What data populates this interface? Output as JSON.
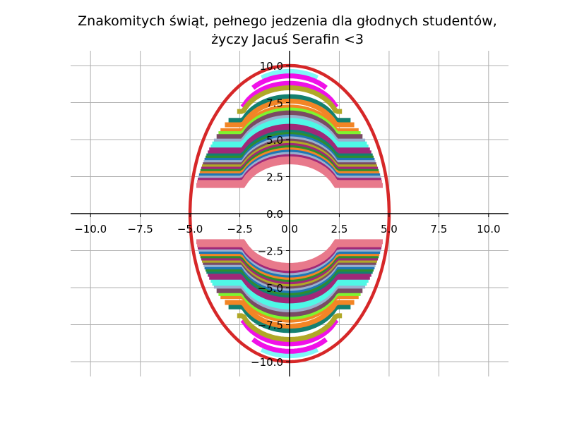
{
  "chart_data": {
    "type": "line",
    "title_lines": [
      "Znakomitych świąt, pełnego jedzenia dla głodnych studentów,",
      "życzy Jacuś Serafin <3"
    ],
    "xlabel": "",
    "ylabel": "",
    "xlim": [
      -11,
      11
    ],
    "ylim": [
      -11,
      11
    ],
    "x_ticks": [
      -10.0,
      -7.5,
      -5.0,
      -2.5,
      0.0,
      2.5,
      5.0,
      7.5,
      10.0
    ],
    "y_ticks": [
      -10.0,
      -7.5,
      -5.0,
      -2.5,
      0.0,
      2.5,
      5.0,
      7.5,
      10.0
    ],
    "x_tick_labels": [
      "−10.0",
      "−7.5",
      "−5.0",
      "−2.5",
      "0.0",
      "2.5",
      "5.0",
      "7.5",
      "10.0"
    ],
    "y_tick_labels": [
      "−10.0",
      "−7.5",
      "−5.0",
      "−2.5",
      "0.0",
      "2.5",
      "5.0",
      "7.5",
      "10.0"
    ],
    "grid": true,
    "legend": "none",
    "outline": {
      "a": 5,
      "b": 10,
      "color": "#d62728"
    },
    "stripe_colors": [
      "#7ff7f7",
      "#f010e8",
      "#b0a827",
      "#138070",
      "#f28525",
      "#7ff52e",
      "#7a4b63",
      "#9ab0ce",
      "#4ff8e6",
      "#a02878",
      "#2e8e2e",
      "#1f77b4",
      "#e8798b"
    ],
    "stripes": [
      {
        "y": 9.6,
        "color_index": 0
      },
      {
        "y": 9.3,
        "color_index": 1
      },
      {
        "y": 8.8,
        "color_index": 1
      },
      {
        "y": 8.5,
        "color_index": 2
      },
      {
        "y": 7.9,
        "color_index": 3
      },
      {
        "y": 7.6,
        "color_index": 4
      },
      {
        "y": 7.2,
        "color_index": 4
      },
      {
        "y": 7.0,
        "color_index": 5
      },
      {
        "y": 6.8,
        "color_index": 6
      },
      {
        "y": 6.5,
        "color_index": 7
      },
      {
        "y": 6.3,
        "color_index": 8
      },
      {
        "y": 6.1,
        "color_index": 8
      },
      {
        "y": 5.9,
        "color_index": 9
      },
      {
        "y": 5.7,
        "color_index": 9
      },
      {
        "y": 5.5,
        "color_index": 3
      },
      {
        "y": 5.35,
        "color_index": 10
      },
      {
        "y": 5.2,
        "color_index": 11
      },
      {
        "y": 5.05,
        "color_index": 7
      },
      {
        "y": 4.9,
        "color_index": 6
      },
      {
        "y": 4.75,
        "color_index": 2
      },
      {
        "y": 4.6,
        "color_index": 9
      },
      {
        "y": 4.45,
        "color_index": 10
      },
      {
        "y": 4.3,
        "color_index": 4
      },
      {
        "y": 4.15,
        "color_index": 11
      },
      {
        "y": 4.0,
        "color_index": 7
      },
      {
        "y": 3.85,
        "color_index": 9
      },
      {
        "y": 3.7,
        "color_index": 12
      },
      {
        "y": 3.5,
        "color_index": 12
      }
    ]
  }
}
